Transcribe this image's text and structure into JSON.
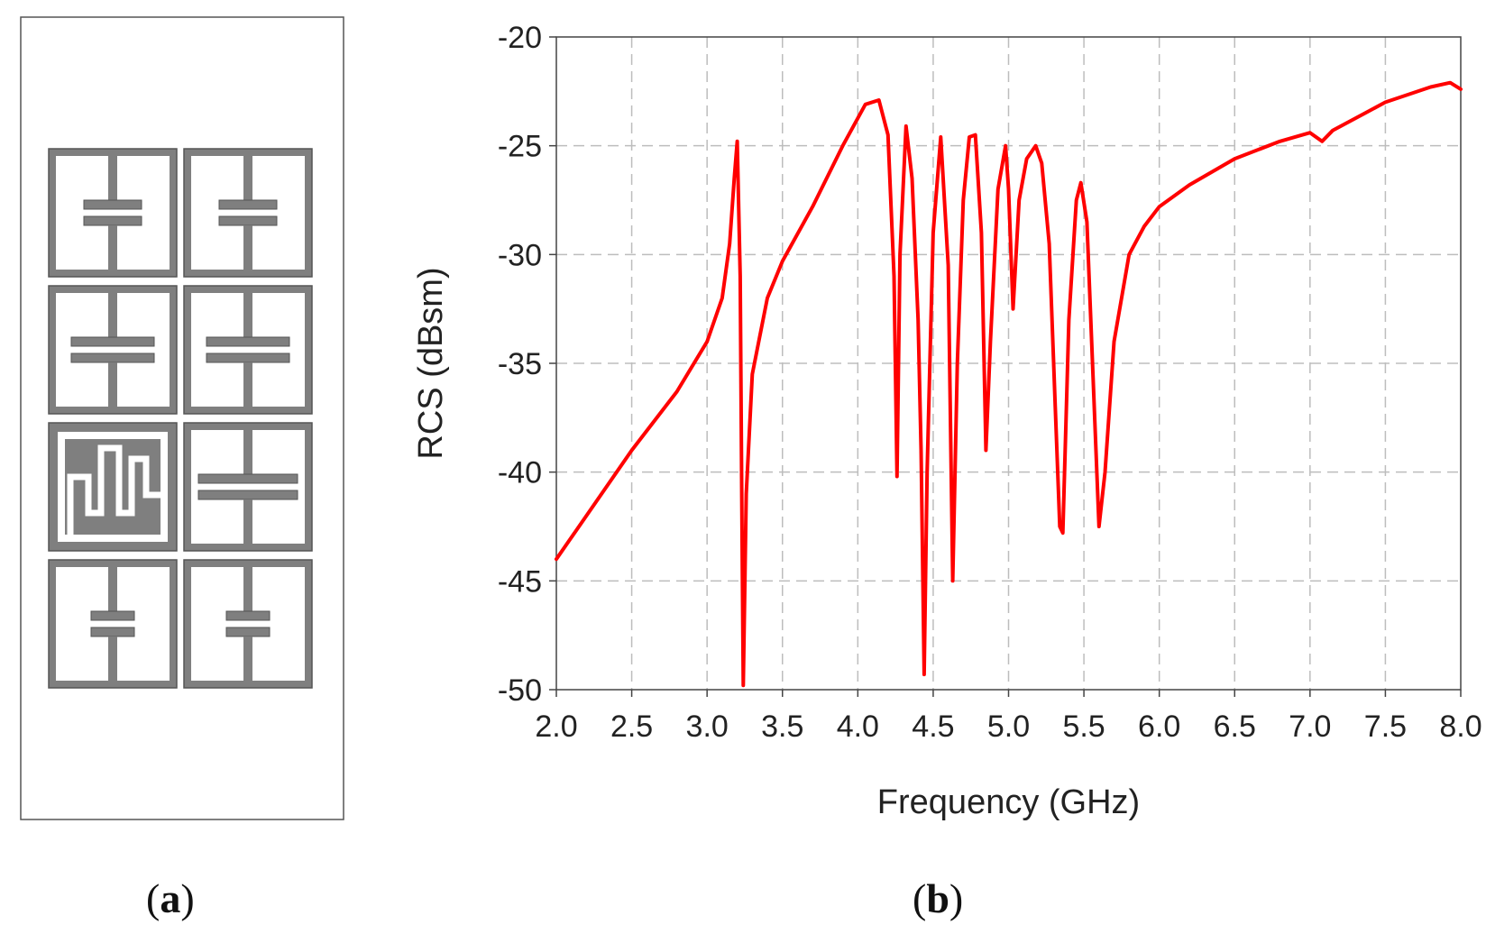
{
  "figure": {
    "panel_a": {
      "caption_open": "(",
      "caption_letter": "a",
      "caption_close": ")",
      "metal_color": "#7f7f7f",
      "gap_color": "#ffffff",
      "cells": [
        {
          "row": 0,
          "col": 0,
          "kind": "capacitor",
          "plate_length": "short"
        },
        {
          "row": 0,
          "col": 1,
          "kind": "capacitor",
          "plate_length": "short"
        },
        {
          "row": 1,
          "col": 0,
          "kind": "capacitor",
          "plate_length": "long"
        },
        {
          "row": 1,
          "col": 1,
          "kind": "capacitor",
          "plate_length": "long"
        },
        {
          "row": 2,
          "col": 0,
          "kind": "meander"
        },
        {
          "row": 2,
          "col": 1,
          "kind": "capacitor",
          "plate_length": "extra-long"
        },
        {
          "row": 3,
          "col": 0,
          "kind": "capacitor",
          "plate_length": "small"
        },
        {
          "row": 3,
          "col": 1,
          "kind": "capacitor",
          "plate_length": "small"
        }
      ]
    },
    "panel_b": {
      "caption_open": "(",
      "caption_letter": "b",
      "caption_close": ")"
    }
  },
  "chart_data": {
    "type": "line",
    "title": "",
    "xlabel": "Frequency (GHz)",
    "ylabel": "RCS (dBsm)",
    "xlim": [
      2.0,
      8.0
    ],
    "ylim": [
      -50,
      -20
    ],
    "xticks": [
      "2.0",
      "2.5",
      "3.0",
      "3.5",
      "4.0",
      "4.5",
      "5.0",
      "5.5",
      "6.0",
      "6.5",
      "7.0",
      "7.5",
      "8.0"
    ],
    "yticks": [
      "-20",
      "-25",
      "-30",
      "-35",
      "-40",
      "-45",
      "-50"
    ],
    "grid": true,
    "grid_style": "dashed",
    "series_color": "#ff0000",
    "series": [
      {
        "name": "",
        "x": [
          2.0,
          2.5,
          2.8,
          3.0,
          3.1,
          3.15,
          3.18,
          3.2,
          3.22,
          3.23,
          3.24,
          3.26,
          3.3,
          3.4,
          3.5,
          3.7,
          3.9,
          4.05,
          4.14,
          4.2,
          4.24,
          4.26,
          4.28,
          4.32,
          4.36,
          4.4,
          4.42,
          4.44,
          4.46,
          4.5,
          4.55,
          4.6,
          4.63,
          4.66,
          4.7,
          4.74,
          4.78,
          4.82,
          4.85,
          4.88,
          4.93,
          4.98,
          5.0,
          5.03,
          5.07,
          5.12,
          5.18,
          5.22,
          5.27,
          5.31,
          5.34,
          5.36,
          5.4,
          5.45,
          5.48,
          5.52,
          5.56,
          5.6,
          5.64,
          5.7,
          5.8,
          5.9,
          6.0,
          6.2,
          6.5,
          6.8,
          7.0,
          7.04,
          7.08,
          7.15,
          7.5,
          7.8,
          7.93,
          8.0
        ],
        "y": [
          -44.0,
          -39.0,
          -36.3,
          -34.0,
          -32.0,
          -29.5,
          -26.5,
          -24.8,
          -31.0,
          -41.0,
          -49.8,
          -41.0,
          -35.5,
          -32.0,
          -30.3,
          -27.8,
          -25.0,
          -23.1,
          -22.9,
          -24.5,
          -31.0,
          -40.2,
          -30.0,
          -24.1,
          -26.5,
          -33.0,
          -39.0,
          -49.3,
          -40.0,
          -29.0,
          -24.6,
          -30.5,
          -45.0,
          -35.0,
          -27.5,
          -24.6,
          -24.5,
          -29.0,
          -39.0,
          -34.0,
          -27.0,
          -25.0,
          -27.0,
          -32.5,
          -27.5,
          -25.6,
          -25.0,
          -25.8,
          -29.5,
          -37.0,
          -42.5,
          -42.8,
          -33.0,
          -27.5,
          -26.7,
          -28.5,
          -35.5,
          -42.5,
          -40.0,
          -34.0,
          -30.0,
          -28.7,
          -27.8,
          -26.8,
          -25.6,
          -24.8,
          -24.4,
          -24.6,
          -24.8,
          -24.3,
          -23.0,
          -22.3,
          -22.1,
          -22.4
        ]
      }
    ]
  }
}
